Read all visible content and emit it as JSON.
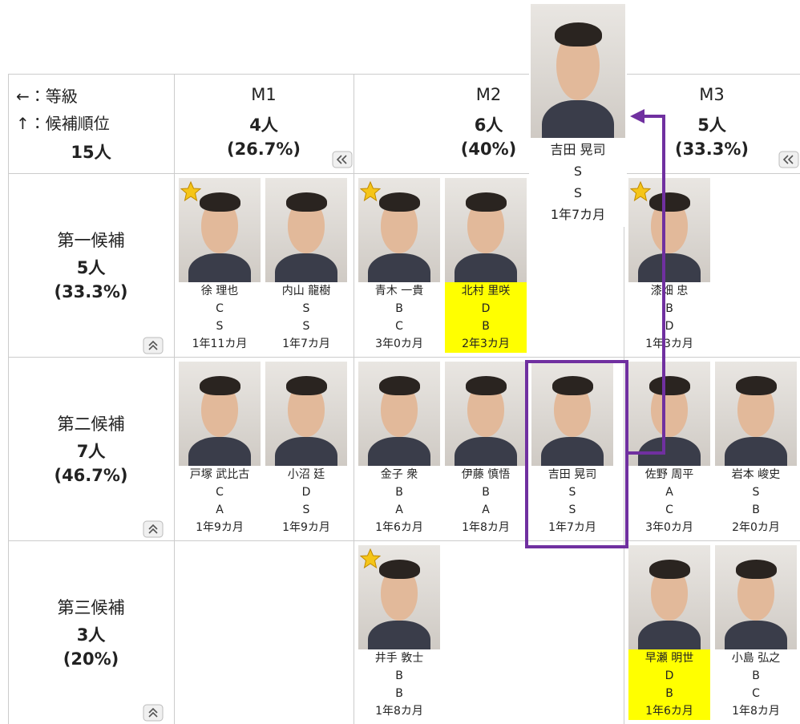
{
  "legend": [
    "←：等級",
    "↑：候補順位"
  ],
  "total": "15人",
  "columns": [
    {
      "label": "M1",
      "count": "4人",
      "percent": "(26.7%)"
    },
    {
      "label": "M2",
      "count": "6人",
      "percent": "(40%)"
    },
    {
      "label": "M3",
      "count": "5人",
      "percent": "(33.3%)"
    }
  ],
  "rows": [
    {
      "label": "第一候補",
      "count": "5人",
      "percent": "(33.3%)",
      "cells": [
        [
          {
            "name": "徐 理也",
            "grade": "C",
            "rank": "S",
            "tenure": "1年11カ月",
            "star": true,
            "highlight": false
          },
          {
            "name": "内山 龍樹",
            "grade": "S",
            "rank": "S",
            "tenure": "1年7カ月",
            "star": false,
            "highlight": false
          }
        ],
        [
          {
            "name": "青木 一貴",
            "grade": "B",
            "rank": "C",
            "tenure": "3年0カ月",
            "star": true,
            "highlight": false
          },
          {
            "name": "北村 里咲",
            "grade": "D",
            "rank": "B",
            "tenure": "2年3カ月",
            "star": false,
            "highlight": true
          }
        ],
        [
          {
            "name": "漆畑 忠",
            "grade": "B",
            "rank": "D",
            "tenure": "1年3カ月",
            "star": true,
            "highlight": false
          }
        ]
      ]
    },
    {
      "label": "第二候補",
      "count": "7人",
      "percent": "(46.7%)",
      "cells": [
        [
          {
            "name": "戸塚 武比古",
            "grade": "C",
            "rank": "A",
            "tenure": "1年9カ月",
            "star": false,
            "highlight": false
          },
          {
            "name": "小沼 廷",
            "grade": "D",
            "rank": "S",
            "tenure": "1年9カ月",
            "star": false,
            "highlight": false
          }
        ],
        [
          {
            "name": "金子 衆",
            "grade": "B",
            "rank": "A",
            "tenure": "1年6カ月",
            "star": false,
            "highlight": false
          },
          {
            "name": "伊藤 慎悟",
            "grade": "B",
            "rank": "A",
            "tenure": "1年8カ月",
            "star": false,
            "highlight": false
          },
          {
            "name": "吉田 晃司",
            "grade": "S",
            "rank": "S",
            "tenure": "1年7カ月",
            "star": false,
            "highlight": false
          }
        ],
        [
          {
            "name": "佐野 周平",
            "grade": "A",
            "rank": "C",
            "tenure": "3年0カ月",
            "star": false,
            "highlight": false
          },
          {
            "name": "岩本 峻史",
            "grade": "S",
            "rank": "B",
            "tenure": "2年0カ月",
            "star": false,
            "highlight": false
          }
        ]
      ]
    },
    {
      "label": "第三候補",
      "count": "3人",
      "percent": "(20%)",
      "cells": [
        [],
        [
          {
            "name": "井手 敦士",
            "grade": "B",
            "rank": "B",
            "tenure": "1年8カ月",
            "star": true,
            "highlight": false
          }
        ],
        [
          {
            "name": "早瀬 明世",
            "grade": "D",
            "rank": "B",
            "tenure": "1年6カ月",
            "star": false,
            "highlight": true
          },
          {
            "name": "小島 弘之",
            "grade": "B",
            "rank": "C",
            "tenure": "1年8カ月",
            "star": false,
            "highlight": false
          }
        ]
      ]
    }
  ],
  "dragging": {
    "name": "吉田 晃司",
    "grade": "S",
    "rank": "S",
    "tenure": "1年7カ月"
  }
}
